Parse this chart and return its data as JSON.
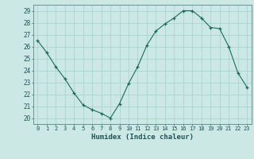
{
  "x": [
    0,
    1,
    2,
    3,
    4,
    5,
    6,
    7,
    8,
    9,
    10,
    11,
    12,
    13,
    14,
    15,
    16,
    17,
    18,
    19,
    20,
    21,
    22,
    23
  ],
  "y": [
    26.5,
    25.5,
    24.3,
    23.3,
    22.1,
    21.1,
    20.7,
    20.4,
    20.0,
    21.2,
    22.9,
    24.3,
    26.1,
    27.3,
    27.9,
    28.4,
    29.0,
    29.0,
    28.4,
    27.6,
    27.5,
    26.0,
    23.8,
    22.6
  ],
  "xlabel": "Humidex (Indice chaleur)",
  "ylabel": "",
  "bg_color": "#cce8e4",
  "grid_color": "#aad4d0",
  "line_color": "#1a6b5a",
  "marker_color": "#1a6b5a",
  "ylim": [
    19.5,
    29.5
  ],
  "yticks": [
    20,
    21,
    22,
    23,
    24,
    25,
    26,
    27,
    28,
    29
  ],
  "xticks": [
    0,
    1,
    2,
    3,
    4,
    5,
    6,
    7,
    8,
    9,
    10,
    11,
    12,
    13,
    14,
    15,
    16,
    17,
    18,
    19,
    20,
    21,
    22,
    23
  ],
  "tick_color": "#1a5555",
  "label_color": "#1a5555"
}
